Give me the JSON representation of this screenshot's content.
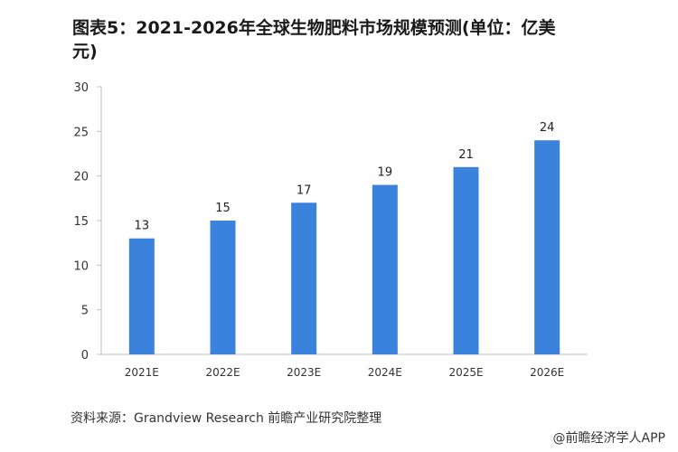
{
  "chart_data": {
    "type": "bar",
    "title": "图表5：2021-2026年全球生物肥料市场规模预测(单位：亿美元)",
    "categories": [
      "2021E",
      "2022E",
      "2023E",
      "2024E",
      "2025E",
      "2026E"
    ],
    "values": [
      13,
      15,
      17,
      19,
      21,
      24
    ],
    "xlabel": "",
    "ylabel": "",
    "ylim": [
      0,
      30
    ],
    "yticks": [
      0,
      5,
      10,
      15,
      20,
      25,
      30
    ],
    "bar_color": "#3b82dc",
    "data_labels": true,
    "grid": false,
    "legend": "none"
  },
  "source": "资料来源：Grandview Research 前瞻产业研究院整理",
  "footer": "@前瞻经济学人APP"
}
